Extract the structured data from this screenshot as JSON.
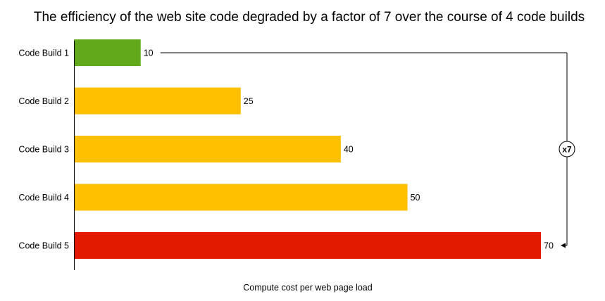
{
  "chart_data": {
    "type": "bar",
    "orientation": "horizontal",
    "title": "The efficiency of the web site code degraded by a factor of 7 over the course of 4 code builds",
    "xlabel": "Compute cost per web page load",
    "ylabel": "",
    "categories": [
      "Code Build 1",
      "Code Build 2",
      "Code Build 3",
      "Code Build 4",
      "Code Build 5"
    ],
    "values": [
      10,
      25,
      40,
      50,
      70
    ],
    "bar_colors": [
      "#62a91b",
      "#ffc000",
      "#ffc000",
      "#ffc000",
      "#e21a00"
    ],
    "xlim": [
      0,
      70
    ],
    "grid": false,
    "legend": "none",
    "annotation": {
      "text": "x7",
      "from_category": "Code Build 1",
      "to_category": "Code Build 5"
    }
  }
}
